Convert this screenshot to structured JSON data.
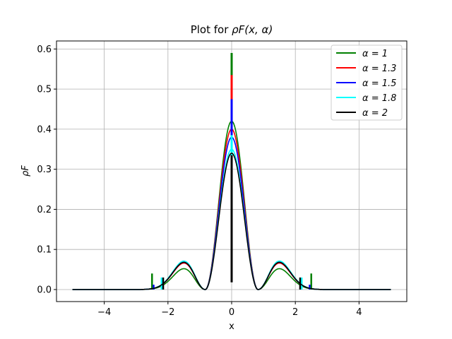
{
  "chart_data": {
    "type": "line",
    "title_prefix": "Plot for ",
    "title_math": "ρF(x, α)",
    "xlabel": "x",
    "ylabel": "ρF",
    "xlim": [
      -5.5,
      5.5
    ],
    "ylim": [
      -0.03,
      0.62
    ],
    "x_ticks": [
      -4,
      -2,
      0,
      2,
      4
    ],
    "x_tick_labels": [
      "−4",
      "−2",
      "0",
      "2",
      "4"
    ],
    "y_ticks": [
      0.0,
      0.1,
      0.2,
      0.3,
      0.4,
      0.5,
      0.6
    ],
    "y_tick_labels": [
      "0.0",
      "0.1",
      "0.2",
      "0.3",
      "0.4",
      "0.5",
      "0.6"
    ],
    "grid": true,
    "legend_position": "top-right",
    "series": [
      {
        "name": "α = 1",
        "color": "#008000",
        "peak": 0.42,
        "side_peak": 0.052,
        "spike_top": 0.59,
        "spike_bottom": 0.395,
        "tail_x": 2.5,
        "edge_mark": 0.04
      },
      {
        "name": "α = 1.3",
        "color": "#ff0000",
        "peak": 0.4,
        "side_peak": 0.066,
        "spike_top": 0.535,
        "spike_bottom": 0.33,
        "tail_x": 2.3,
        "edge_mark": 0.0
      },
      {
        "name": "α = 1.5",
        "color": "#0000ff",
        "peak": 0.38,
        "side_peak": 0.068,
        "spike_top": 0.475,
        "spike_bottom": 0.33,
        "tail_x": 2.45,
        "edge_mark": 0.012
      },
      {
        "name": "α = 1.8",
        "color": "#00ffff",
        "peak": 0.35,
        "side_peak": 0.071,
        "spike_top": 0.385,
        "spike_bottom": 0.27,
        "tail_x": 2.2,
        "edge_mark": 0.03
      },
      {
        "name": "α = 2",
        "color": "#000000",
        "peak": 0.34,
        "side_peak": 0.068,
        "spike_top": 0.335,
        "spike_bottom": 0.018,
        "tail_x": 2.15,
        "edge_mark": 0.03
      }
    ]
  }
}
